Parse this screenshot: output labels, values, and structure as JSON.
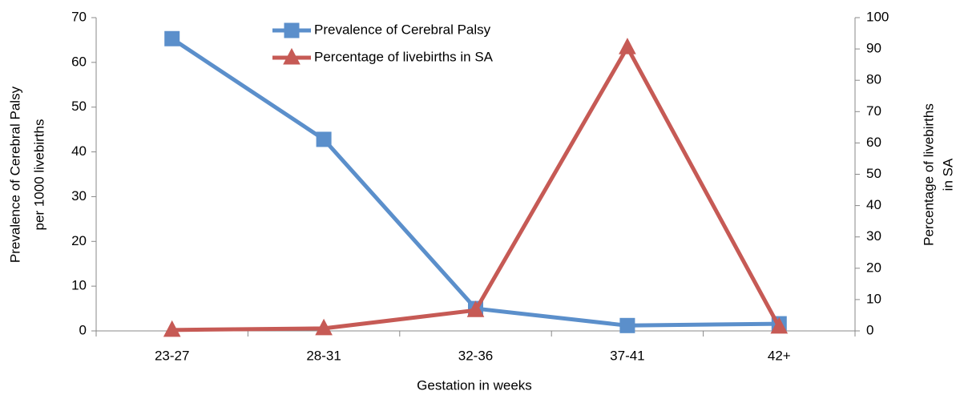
{
  "chart_data": {
    "type": "line",
    "categories": [
      "23-27",
      "28-31",
      "32-36",
      "37-41",
      "42+"
    ],
    "series": [
      {
        "name": "Prevalence of Cerebral Palsy",
        "color": "#5b8fcb",
        "marker": "square",
        "values": [
          65.3,
          42.8,
          5.0,
          1.2,
          1.6
        ]
      },
      {
        "name": "Percentage of livebirths in SA",
        "color": "#c65a55",
        "marker": "triangle",
        "axis": "y2",
        "values": [
          0.3,
          0.8,
          6.6,
          90.5,
          1.3
        ]
      }
    ],
    "xlabel": "Gestation in weeks",
    "ylabel": [
      "Prevalence of Cerebral Palsy",
      "per 1000 livebirths"
    ],
    "y2label": [
      "Percentage of livebirths",
      "in SA"
    ],
    "ylim": [
      0,
      70
    ],
    "yticks": [
      0,
      10,
      20,
      30,
      40,
      50,
      60,
      70
    ],
    "y2lim": [
      0,
      100
    ],
    "y2ticks": [
      0,
      10,
      20,
      30,
      40,
      50,
      60,
      70,
      80,
      90,
      100
    ],
    "legend": "top"
  }
}
